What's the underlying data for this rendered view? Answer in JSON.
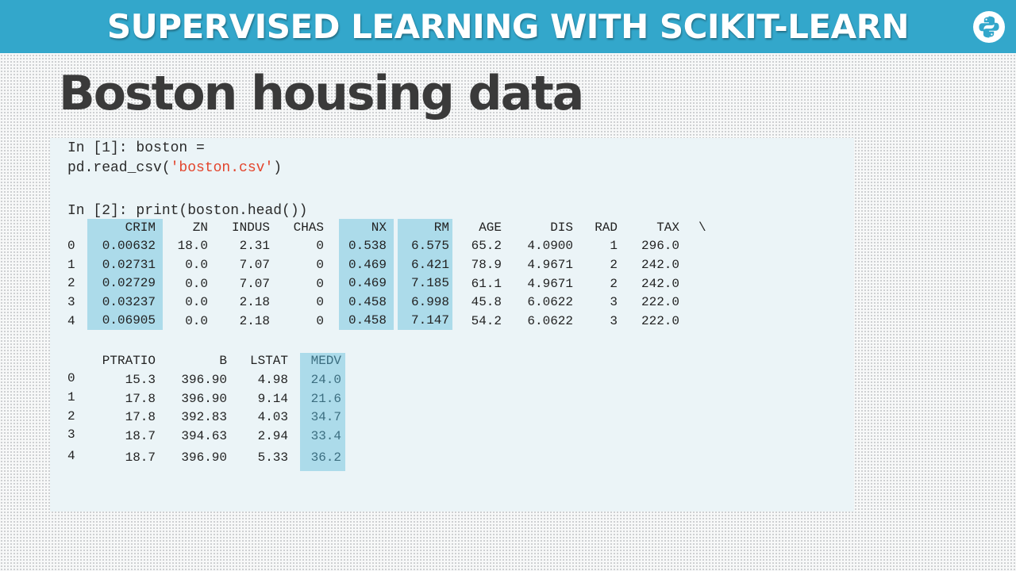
{
  "banner": {
    "title": "SUPERVISED LEARNING WITH SCIKIT-LEARN",
    "logo_icon": "python-logo-icon",
    "color": "#33a7cb"
  },
  "slide": {
    "title": "Boston housing data"
  },
  "code": {
    "in1_line1": "In [1]: boston =",
    "in1_line2_prefix": "pd.read_csv(",
    "in1_line2_string": "'boston.csv'",
    "in1_line2_suffix": ")",
    "in2_line": "In [2]: print(boston.head())",
    "string_color": "#e3452d"
  },
  "table1": {
    "columns": [
      "CRIM",
      "ZN",
      "INDUS",
      "CHAS",
      "NX",
      "RM",
      "AGE",
      "DIS",
      "RAD",
      "TAX"
    ],
    "continuation": "\\",
    "highlighted": [
      "CRIM",
      "NX",
      "RM"
    ],
    "rows": [
      {
        "index": "0",
        "cells": [
          "0.00632",
          "18.0",
          "2.31",
          "0",
          "0.538",
          "6.575",
          "65.2",
          "4.0900",
          "1",
          "296.0"
        ]
      },
      {
        "index": "1",
        "cells": [
          "0.02731",
          "0.0",
          "7.07",
          "0",
          "0.469",
          "6.421",
          "78.9",
          "4.9671",
          "2",
          "242.0"
        ]
      },
      {
        "index": "2",
        "cells": [
          "0.02729",
          "0.0",
          "7.07",
          "0",
          "0.469",
          "7.185",
          "61.1",
          "4.9671",
          "2",
          "242.0"
        ]
      },
      {
        "index": "3",
        "cells": [
          "0.03237",
          "0.0",
          "2.18",
          "0",
          "0.458",
          "6.998",
          "45.8",
          "6.0622",
          "3",
          "222.0"
        ]
      },
      {
        "index": "4",
        "cells": [
          "0.06905",
          "0.0",
          "2.18",
          "0",
          "0.458",
          "7.147",
          "54.2",
          "6.0622",
          "3",
          "222.0"
        ]
      }
    ]
  },
  "table2": {
    "columns": [
      "PTRATIO",
      "B",
      "LSTAT",
      "MEDV"
    ],
    "highlighted": [
      "MEDV"
    ],
    "rows": [
      {
        "index": "0",
        "cells": [
          "15.3",
          "396.90",
          "4.98",
          "24.0"
        ]
      },
      {
        "index": "1",
        "cells": [
          "17.8",
          "396.90",
          "9.14",
          "21.6"
        ]
      },
      {
        "index": "2",
        "cells": [
          "17.8",
          "392.83",
          "4.03",
          "34.7"
        ]
      },
      {
        "index": "3",
        "cells": [
          "18.7",
          "394.63",
          "2.94",
          "33.4"
        ]
      },
      {
        "index": "4",
        "cells": [
          "18.7",
          "396.90",
          "5.33",
          "36.2"
        ]
      }
    ]
  }
}
